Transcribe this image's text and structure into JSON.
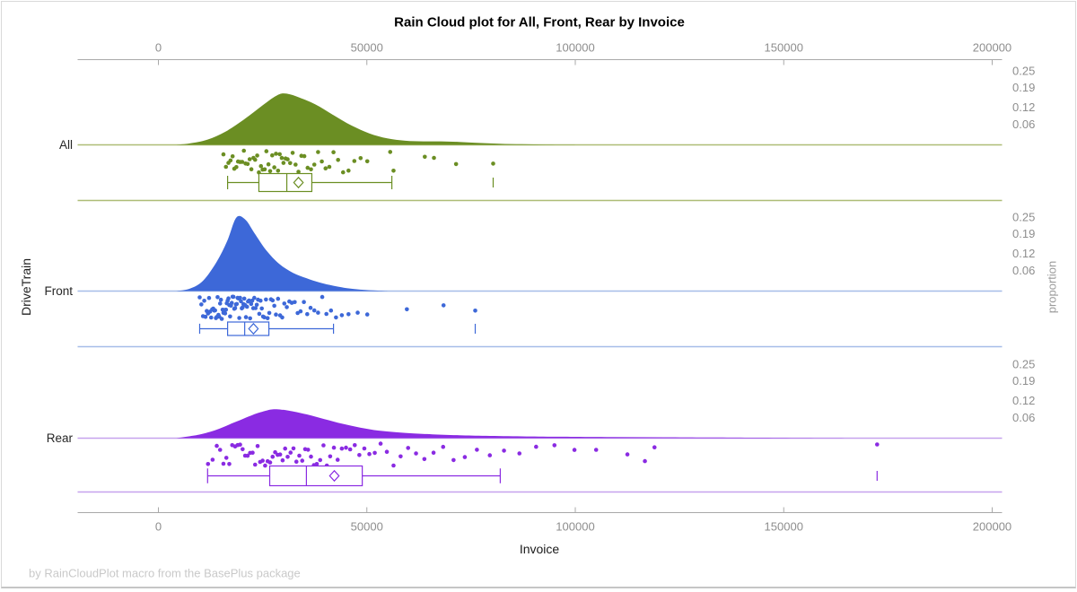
{
  "page": {
    "title": "Rain Cloud plot for All, Front, Rear by Invoice",
    "footer": "by RainCloudPlot macro from the BasePlus package"
  },
  "chart_data": {
    "type": "raincloud",
    "title": "Rain Cloud plot for All, Front, Rear by Invoice",
    "xlabel": "Invoice",
    "ylabel": "DriveTrain",
    "y2label": "proportion",
    "categories": [
      "All",
      "Front",
      "Rear"
    ],
    "x_ticks": [
      0,
      50000,
      100000,
      150000,
      200000
    ],
    "x_range": [
      -19375,
      202370
    ],
    "proportion_ticks": [
      "0.25",
      "0.19",
      "0.12",
      "0.06"
    ],
    "legend": "none",
    "grid": "off",
    "series": [
      {
        "name": "All",
        "color": "#6B8E23",
        "light_color": "#aebd77",
        "density": [
          [
            4300,
            0
          ],
          [
            7500,
            0.005
          ],
          [
            11800,
            0.018
          ],
          [
            16100,
            0.045
          ],
          [
            20400,
            0.085
          ],
          [
            24700,
            0.131
          ],
          [
            27500,
            0.16
          ],
          [
            29500,
            0.174
          ],
          [
            31500,
            0.172
          ],
          [
            33400,
            0.163
          ],
          [
            37600,
            0.138
          ],
          [
            42000,
            0.101
          ],
          [
            46300,
            0.066
          ],
          [
            50600,
            0.039
          ],
          [
            54900,
            0.022
          ],
          [
            59200,
            0.014
          ],
          [
            63500,
            0.012
          ],
          [
            67800,
            0.012
          ],
          [
            72100,
            0.01
          ],
          [
            76400,
            0.007
          ],
          [
            81800,
            0.004
          ],
          [
            87200,
            0.002
          ],
          [
            93000,
            0.001
          ],
          [
            100000,
            0
          ]
        ],
        "box": {
          "min": 16600,
          "q1": 24100,
          "median": 30800,
          "mean": 33600,
          "q3": 36800,
          "max": 56000,
          "outliers": [
            80300
          ]
        },
        "rain": [
          15600,
          16200,
          16800,
          17300,
          17800,
          18200,
          18700,
          19100,
          19600,
          20100,
          20500,
          20900,
          21400,
          21900,
          22300,
          22800,
          23200,
          23700,
          24100,
          24600,
          25000,
          25500,
          25900,
          26400,
          26800,
          27300,
          27800,
          28200,
          28700,
          29100,
          29600,
          30000,
          30500,
          31000,
          31600,
          32200,
          32900,
          33600,
          34300,
          35000,
          35800,
          36600,
          37400,
          38300,
          39200,
          40100,
          41000,
          42000,
          43100,
          44300,
          45600,
          47000,
          48500,
          50100,
          55600,
          56400,
          63900,
          66100,
          71400,
          80300
        ]
      },
      {
        "name": "Front",
        "color": "#3D68D8",
        "light_color": "#a6bce8",
        "density": [
          [
            4300,
            0
          ],
          [
            7500,
            0.008
          ],
          [
            10700,
            0.035
          ],
          [
            14000,
            0.1
          ],
          [
            16500,
            0.17
          ],
          [
            18700,
            0.25
          ],
          [
            20900,
            0.242
          ],
          [
            23000,
            0.198
          ],
          [
            25800,
            0.14
          ],
          [
            29000,
            0.092
          ],
          [
            32300,
            0.062
          ],
          [
            35500,
            0.044
          ],
          [
            38700,
            0.029
          ],
          [
            42000,
            0.018
          ],
          [
            45200,
            0.01
          ],
          [
            48400,
            0.005
          ],
          [
            51600,
            0.002
          ],
          [
            55000,
            0
          ]
        ],
        "box": {
          "min": 9900,
          "q1": 16600,
          "median": 20700,
          "mean": 22800,
          "q3": 26500,
          "max": 42000,
          "outliers": [
            76000
          ]
        },
        "rain": [
          9900,
          10300,
          10700,
          11000,
          11300,
          11600,
          11900,
          12150,
          12400,
          12650,
          12900,
          13150,
          13400,
          13600,
          13800,
          14000,
          14200,
          14400,
          14600,
          14800,
          15000,
          15200,
          15400,
          15600,
          15800,
          16000,
          16200,
          16400,
          16600,
          16800,
          17000,
          17200,
          17400,
          17600,
          17800,
          18000,
          18200,
          18400,
          18600,
          18800,
          19000,
          19200,
          19400,
          19600,
          19800,
          20000,
          20200,
          20400,
          20600,
          20800,
          21000,
          21250,
          21500,
          21750,
          22000,
          22250,
          22500,
          22750,
          23000,
          23300,
          23600,
          23900,
          24200,
          24500,
          24800,
          25100,
          25400,
          25800,
          26200,
          26600,
          27000,
          27400,
          27800,
          28200,
          28700,
          29200,
          29700,
          30200,
          30800,
          31400,
          32000,
          32700,
          33400,
          34100,
          34900,
          35700,
          36500,
          37400,
          38300,
          39300,
          40300,
          41400,
          42600,
          44000,
          45600,
          47800,
          50100,
          59600,
          68400,
          76000
        ]
      },
      {
        "name": "Rear",
        "color": "#8A2BE2",
        "light_color": "#c6a2ee",
        "density": [
          [
            4300,
            0
          ],
          [
            9700,
            0.012
          ],
          [
            14000,
            0.029
          ],
          [
            18300,
            0.054
          ],
          [
            22600,
            0.079
          ],
          [
            25500,
            0.092
          ],
          [
            27400,
            0.098
          ],
          [
            29500,
            0.097
          ],
          [
            31200,
            0.094
          ],
          [
            35500,
            0.081
          ],
          [
            39800,
            0.065
          ],
          [
            44100,
            0.049
          ],
          [
            48400,
            0.036
          ],
          [
            52700,
            0.026
          ],
          [
            57000,
            0.02
          ],
          [
            61300,
            0.016
          ],
          [
            65700,
            0.013
          ],
          [
            72100,
            0.01
          ],
          [
            78600,
            0.008
          ],
          [
            87200,
            0.006
          ],
          [
            95800,
            0.005
          ],
          [
            108700,
            0.004
          ],
          [
            121600,
            0.003
          ],
          [
            134500,
            0.002
          ],
          [
            151700,
            0.001
          ],
          [
            167000,
            0
          ]
        ],
        "box": {
          "min": 11800,
          "q1": 26700,
          "median": 35500,
          "mean": 42200,
          "q3": 48900,
          "max": 82000,
          "outliers": [
            172400
          ]
        },
        "rain": [
          11900,
          13000,
          14000,
          14800,
          15600,
          16300,
          17000,
          17700,
          18400,
          19000,
          19600,
          20200,
          20800,
          21400,
          22000,
          22600,
          23200,
          23800,
          24400,
          25000,
          25600,
          26200,
          26800,
          27400,
          28000,
          28600,
          29200,
          29800,
          30400,
          31000,
          31700,
          32400,
          33100,
          33800,
          34500,
          35200,
          35900,
          36600,
          37300,
          38000,
          38800,
          39600,
          40400,
          41200,
          42100,
          43000,
          44000,
          45000,
          46000,
          47100,
          48200,
          49400,
          50600,
          51900,
          53300,
          54800,
          56400,
          58100,
          59900,
          61800,
          63800,
          66000,
          68300,
          70800,
          73500,
          76400,
          79500,
          82900,
          86600,
          90600,
          95000,
          99800,
          105000,
          112500,
          116700,
          119000,
          172400
        ]
      }
    ]
  }
}
